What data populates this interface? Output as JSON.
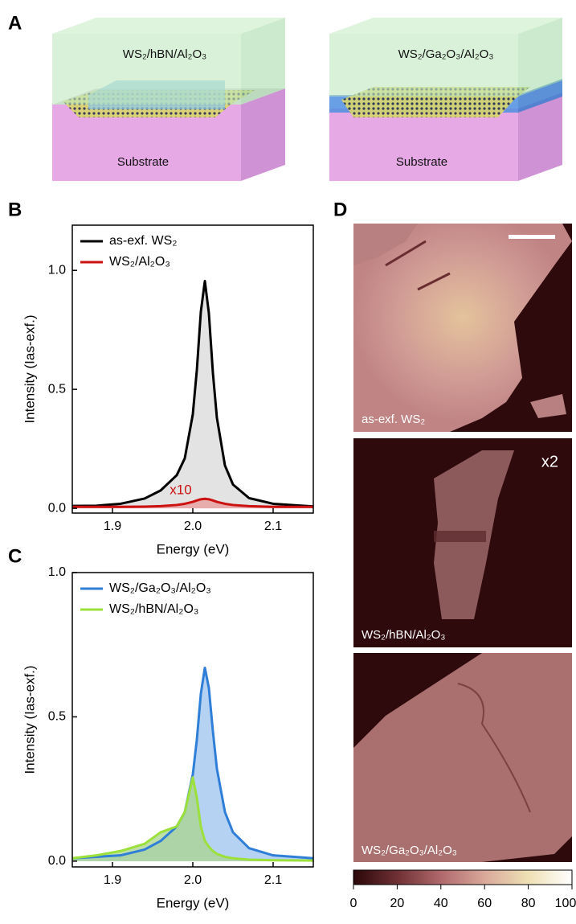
{
  "panel_labels": {
    "a": "A",
    "b": "B",
    "c": "C",
    "d": "D"
  },
  "schematic": {
    "left": {
      "label": "WS₂/hBN/Al₂O₃",
      "substrate": "Substrate"
    },
    "right": {
      "label": "WS₂/Ga₂O₃/Al₂O₃",
      "substrate": "Substrate"
    }
  },
  "chart_data": [
    {
      "type": "line",
      "xlabel": "Energy (eV)",
      "ylabel": "Intensity (Ias-exf.)",
      "x": [
        1.85,
        1.88,
        1.91,
        1.94,
        1.96,
        1.98,
        1.99,
        2.0,
        2.005,
        2.01,
        2.015,
        2.02,
        2.025,
        2.03,
        2.04,
        2.05,
        2.07,
        2.1,
        2.15
      ],
      "xlim": [
        1.85,
        2.15
      ],
      "xticks": [
        1.9,
        {
          "value": 2,
          "label": "2.0"
        },
        2.1
      ],
      "ylim": [
        -0.02,
        1.19
      ],
      "yticks": [
        {
          "value": 0,
          "label": "0.0"
        },
        0.5,
        {
          "value": 1,
          "label": "1.0"
        }
      ],
      "series": [
        {
          "name": "as-exf. WS₂",
          "color": "#000000",
          "fill": "#d9d9d9",
          "values": [
            0.01,
            0.011,
            0.019,
            0.041,
            0.075,
            0.139,
            0.21,
            0.395,
            0.58,
            0.826,
            0.955,
            0.82,
            0.57,
            0.38,
            0.18,
            0.1,
            0.043,
            0.019,
            0.008
          ]
        },
        {
          "name": "WS₂/Al₂O₃",
          "color": "#cc1111",
          "fill": "#e89a9a",
          "values": [
            0.006,
            0.006,
            0.006,
            0.007,
            0.009,
            0.014,
            0.019,
            0.027,
            0.033,
            0.038,
            0.04,
            0.038,
            0.033,
            0.027,
            0.019,
            0.014,
            0.009,
            0.006,
            0.006
          ]
        }
      ],
      "annotation": {
        "text": "x10",
        "color": "#cc1111"
      }
    },
    {
      "type": "line",
      "xlabel": "Energy (eV)",
      "ylabel": "Intensity (Ias-exf.)",
      "x": [
        1.85,
        1.88,
        1.91,
        1.94,
        1.96,
        1.98,
        1.99,
        2.0,
        2.005,
        2.01,
        2.015,
        2.02,
        2.025,
        2.03,
        2.04,
        2.05,
        2.07,
        2.1,
        2.15
      ],
      "xlim": [
        1.85,
        2.15
      ],
      "xticks": [
        1.9,
        {
          "value": 2,
          "label": "2.0"
        },
        2.1
      ],
      "ylim": [
        -0.02,
        1.0
      ],
      "yticks": [
        {
          "value": 0,
          "label": "0.0"
        },
        0.5,
        {
          "value": 1,
          "label": "1.0"
        }
      ],
      "series": [
        {
          "name": "WS₂/Ga₂O₃/Al₂O₃",
          "color": "#2f7fd8",
          "fill": "#9cc3ef",
          "values": [
            0.01,
            0.015,
            0.02,
            0.04,
            0.07,
            0.12,
            0.17,
            0.3,
            0.42,
            0.58,
            0.67,
            0.6,
            0.45,
            0.32,
            0.17,
            0.1,
            0.045,
            0.02,
            0.01
          ]
        },
        {
          "name": "WS₂/hBN/Al₂O₃",
          "color": "#9be03b",
          "fill": "#a9d48c",
          "values": [
            0.01,
            0.02,
            0.035,
            0.06,
            0.1,
            0.12,
            0.17,
            0.29,
            0.22,
            0.12,
            0.07,
            0.05,
            0.035,
            0.025,
            0.015,
            0.01,
            0.005,
            0.003,
            0.002
          ]
        }
      ]
    }
  ],
  "maps": [
    {
      "label": "as-exf. WS₂"
    },
    {
      "label": "WS₂/hBN/Al₂O₃",
      "scale_note": "x2"
    },
    {
      "label": "WS₂/Ga₂O₃/Al₂O₃"
    }
  ],
  "colorbar": {
    "lim": [
      0,
      100
    ],
    "ticks": [
      0,
      20,
      40,
      60,
      80,
      100
    ]
  }
}
